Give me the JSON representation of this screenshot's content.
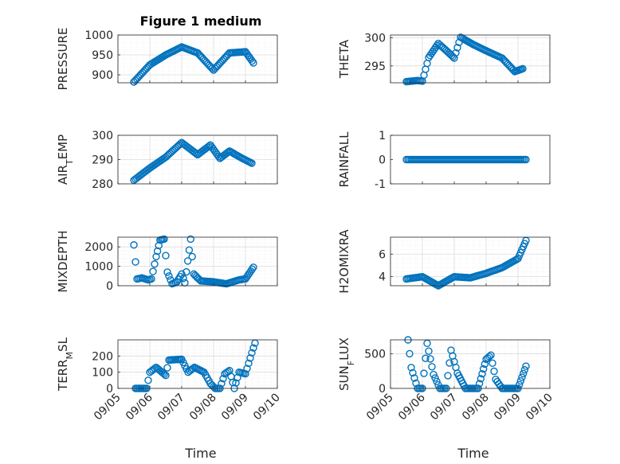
{
  "figure": {
    "title": "Figure 1 medium",
    "xlabel": "Time",
    "x_ticklabels": [
      "09/05",
      "09/06",
      "09/07",
      "09/08",
      "09/09",
      "09/10"
    ],
    "marker": "circle",
    "series_color": "#0072BD"
  },
  "chart_data": [
    {
      "type": "scatter",
      "ylabel": "PRESSURE",
      "ylim": [
        880,
        1000
      ],
      "yticks": [
        900,
        950,
        1000
      ],
      "yticklabels": [
        "900",
        "950",
        "1000"
      ],
      "grid": true,
      "x": [
        "09/05 12:00",
        "09/06 00:00",
        "09/06 12:00",
        "09/07 00:00",
        "09/07 12:00",
        "09/08 00:00",
        "09/08 12:00",
        "09/09 00:00",
        "09/09 06:00"
      ],
      "x_days": [
        0.5,
        1.0,
        1.5,
        2.0,
        2.5,
        3.0,
        3.5,
        4.0,
        4.25
      ],
      "values": [
        882,
        925,
        950,
        970,
        955,
        912,
        955,
        958,
        930
      ]
    },
    {
      "type": "scatter",
      "ylabel": "THETA",
      "ylim": [
        292,
        300.5
      ],
      "yticks": [
        295,
        300
      ],
      "yticklabels": [
        "295",
        "300"
      ],
      "grid": true,
      "x_days": [
        0.5,
        0.85,
        1.0,
        1.2,
        1.5,
        1.7,
        2.0,
        2.2,
        2.6,
        3.0,
        3.5,
        3.9,
        4.15
      ],
      "values": [
        292.2,
        292.4,
        292.3,
        296.5,
        299.0,
        298.0,
        296.4,
        300.1,
        298.8,
        297.7,
        296.4,
        294.0,
        294.5
      ]
    },
    {
      "type": "scatter",
      "ylabel": "AIR_TEMP",
      "ylabel_main": "AIR",
      "ylabel_sub": "T",
      "ylabel_rest": "EMP",
      "ylim": [
        280,
        300
      ],
      "yticks": [
        280,
        290,
        300
      ],
      "yticklabels": [
        "280",
        "290",
        "300"
      ],
      "grid": true,
      "x_days": [
        0.5,
        1.0,
        1.5,
        2.0,
        2.5,
        2.9,
        3.2,
        3.5,
        3.9,
        4.2
      ],
      "values": [
        281.5,
        286.5,
        291.0,
        297.0,
        292.0,
        296.0,
        290.5,
        293.5,
        290.5,
        288.5
      ]
    },
    {
      "type": "scatter",
      "ylabel": "RAINFALL",
      "ylim": [
        -1,
        1
      ],
      "yticks": [
        -1,
        0,
        1
      ],
      "yticklabels": [
        "-1",
        "0",
        "1"
      ],
      "grid": false,
      "x_days": [
        0.5,
        4.25
      ],
      "values": [
        0,
        0
      ]
    },
    {
      "type": "scatter",
      "ylabel": "MIXDEPTH",
      "ylim": [
        0,
        2500
      ],
      "yticks": [
        0,
        1000,
        2000
      ],
      "yticklabels": [
        "0",
        "1000",
        "2000"
      ],
      "grid": true,
      "x_days": [
        0.5,
        0.6,
        0.75,
        0.95,
        1.05,
        1.2,
        1.32,
        1.45,
        1.55,
        1.7,
        1.85,
        2.0,
        2.1,
        2.28,
        2.38,
        2.5,
        2.6,
        3.0,
        3.4,
        3.8,
        4.0,
        4.25
      ],
      "values": [
        2100,
        350,
        400,
        300,
        350,
        1500,
        2350,
        2400,
        700,
        100,
        200,
        600,
        150,
        2400,
        600,
        400,
        250,
        200,
        100,
        300,
        350,
        950
      ]
    },
    {
      "type": "scatter",
      "ylabel": "H2OMIXRA",
      "ylim": [
        3.2,
        7.5
      ],
      "yticks": [
        4,
        6
      ],
      "yticklabels": [
        "4",
        "6"
      ],
      "grid": true,
      "x_days": [
        0.5,
        1.0,
        1.5,
        2.0,
        2.5,
        3.0,
        3.5,
        4.0,
        4.25
      ],
      "values": [
        3.8,
        4.0,
        3.2,
        4.0,
        3.9,
        4.3,
        4.8,
        5.6,
        7.2
      ]
    },
    {
      "type": "scatter",
      "ylabel": "TERR_MSL",
      "ylabel_main": "TERR",
      "ylabel_sub": "M",
      "ylabel_rest": "SL",
      "ylim": [
        0,
        300
      ],
      "yticks": [
        0,
        100,
        200
      ],
      "yticklabels": [
        "0",
        "100",
        "200"
      ],
      "grid": true,
      "x_days": [
        0.55,
        0.9,
        1.0,
        1.2,
        1.5,
        1.6,
        2.0,
        2.2,
        2.4,
        2.7,
        2.9,
        3.05,
        3.2,
        3.35,
        3.5,
        3.65,
        3.8,
        4.0,
        4.2,
        4.3
      ],
      "values": [
        0,
        0,
        100,
        130,
        80,
        175,
        180,
        100,
        130,
        100,
        30,
        0,
        0,
        90,
        110,
        0,
        100,
        90,
        220,
        280
      ]
    },
    {
      "type": "scatter",
      "ylabel": "SUN_FLUX",
      "ylabel_main": "SUN",
      "ylabel_sub": "F",
      "ylabel_rest": "LUX",
      "ylim": [
        0,
        700
      ],
      "yticks": [
        0,
        500
      ],
      "yticklabels": [
        "0",
        "500"
      ],
      "grid": true,
      "x_days": [
        0.55,
        0.65,
        0.85,
        1.0,
        1.15,
        1.35,
        1.55,
        1.75,
        1.9,
        2.1,
        2.35,
        2.55,
        2.75,
        3.0,
        3.15,
        3.3,
        3.5,
        3.7,
        3.85,
        4.0,
        4.25
      ],
      "values": [
        700,
        300,
        0,
        0,
        650,
        200,
        0,
        0,
        550,
        220,
        0,
        0,
        0,
        420,
        480,
        130,
        0,
        0,
        0,
        0,
        320
      ]
    }
  ]
}
